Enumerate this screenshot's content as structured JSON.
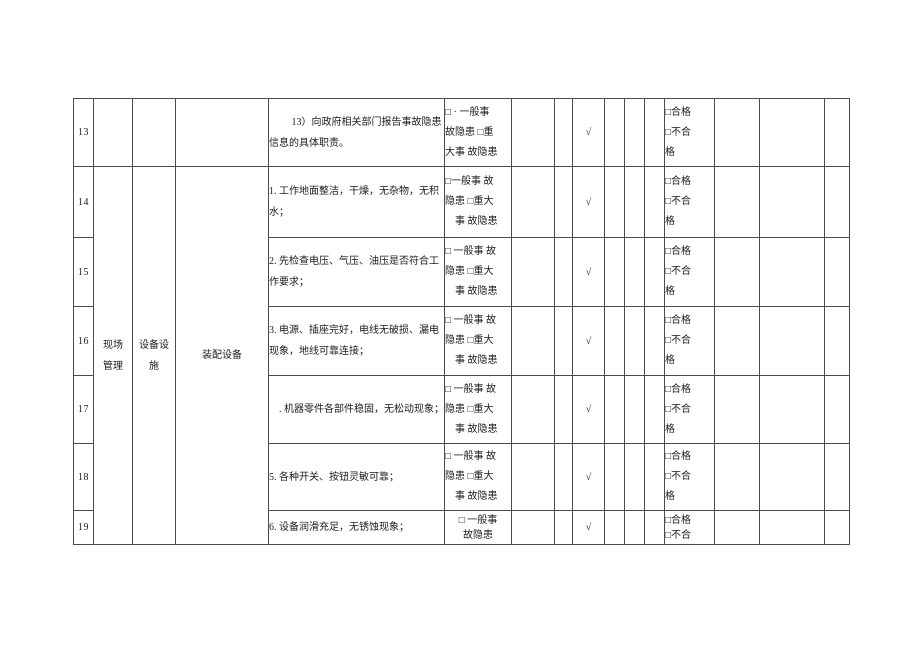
{
  "colors": {
    "background": "#ffffff",
    "border": "#4c4c4c",
    "text": "#1c1c1c"
  },
  "categories": {
    "scene": [
      "现场",
      "管理"
    ],
    "facility": [
      "设备设",
      "施"
    ],
    "equipment": [
      "装配设备"
    ]
  },
  "rows": [
    {
      "no": "13",
      "desc": [
        "　　 13）向政府相关部门报告事故隐患",
        "信息的具体职责。"
      ],
      "hazard": [
        "□ · 一般事",
        "故隐患 □重",
        "大事 故隐患"
      ],
      "check": "√",
      "qual": [
        "□合格",
        "□不合",
        "格"
      ]
    },
    {
      "no": "14",
      "desc": [
        "1. 工作地面整洁，干燥，无杂物，无积",
        "水；"
      ],
      "hazard": [
        "□一般事 故",
        "隐患 □重大",
        "　事 故隐患"
      ],
      "check": "√",
      "qual": [
        "□合格",
        "□不合",
        "格"
      ]
    },
    {
      "no": "15",
      "desc": [
        "2. 先检查电压、气压、油压是否符合工",
        "作要求；"
      ],
      "hazard": [
        "□ 一般事 故",
        "隐患 □重大",
        "　事 故隐患"
      ],
      "check": "√",
      "qual": [
        "□合格",
        "□不合",
        "格"
      ]
    },
    {
      "no": "16",
      "desc": [
        "3. 电源、插座完好，电线无破损、漏电",
        "现象，地线可靠连接；"
      ],
      "hazard": [
        "□ 一般事 故",
        "隐患 □重大",
        "　事 故隐患"
      ],
      "check": "√",
      "qual": [
        "□合格",
        "□不合",
        "格"
      ]
    },
    {
      "no": "17",
      "desc": [
        "　. 机器零件各部件稳固，无松动现象；"
      ],
      "hazard": [
        "□ 一般事 故",
        "隐患 □重大",
        "　事 故隐患"
      ],
      "check": "√",
      "qual": [
        "□合格",
        "□不合",
        "格"
      ]
    },
    {
      "no": "18",
      "desc": [
        "5. 各种开关、按钮灵敏可靠；"
      ],
      "hazard": [
        "□ 一般事 故",
        "隐患 □重大",
        "　事 故隐患"
      ],
      "check": "√",
      "qual": [
        "□合格",
        "□不合",
        "格"
      ]
    },
    {
      "no": "19",
      "desc": [
        "6. 设备润滑充足，无锈蚀现象；"
      ],
      "hazard": [
        "□ 一般事",
        "故隐患"
      ],
      "check": "√",
      "qual": [
        "□合格",
        "□不合"
      ]
    }
  ]
}
